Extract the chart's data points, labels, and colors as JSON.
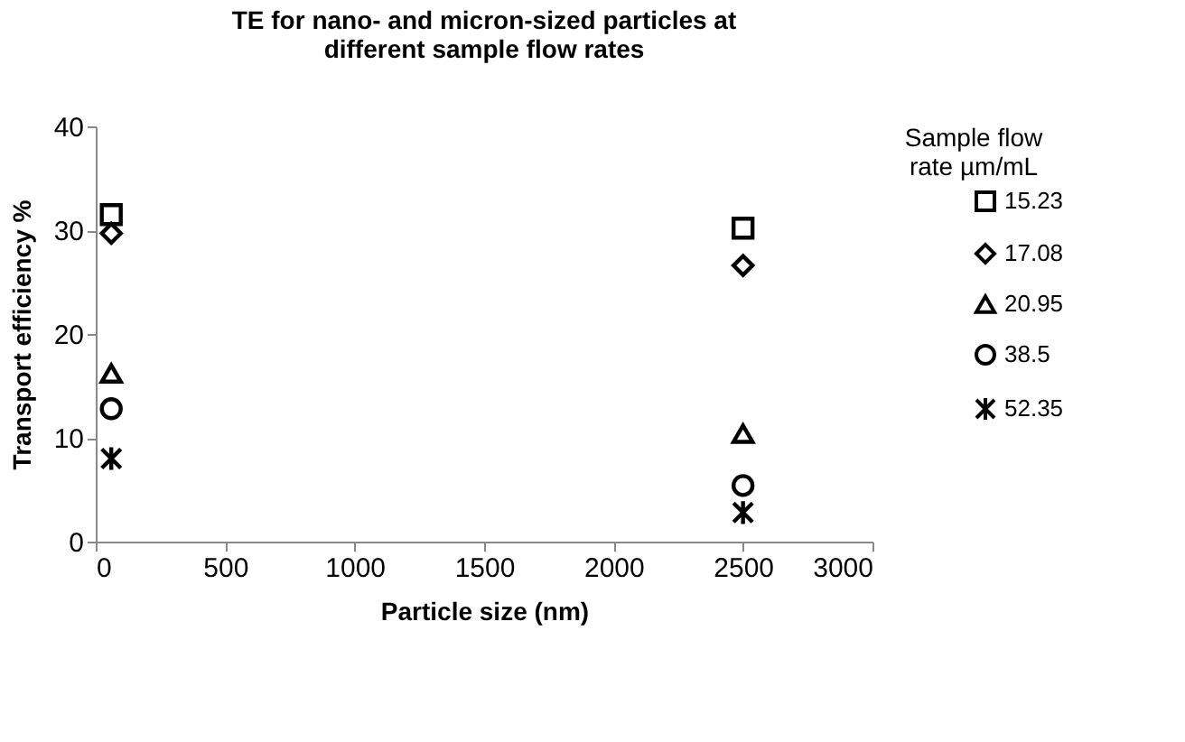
{
  "chart_data": {
    "type": "scatter",
    "title": "TE for nano- and micron-sized particles at different sample flow rates",
    "xlabel": "Particle size (nm)",
    "ylabel": "Transport efficiency %",
    "legend_title": "Sample flow rate µm/mL",
    "x": [
      60,
      2500
    ],
    "series": [
      {
        "name": "15.23",
        "color": "#000000",
        "marker": "square",
        "values": [
          31.5,
          30.2
        ]
      },
      {
        "name": "17.08",
        "color": "#000000",
        "marker": "diamond",
        "values": [
          29.7,
          26.6
        ]
      },
      {
        "name": "20.95",
        "color": "#000000",
        "marker": "triangle",
        "values": [
          16.2,
          10.4
        ]
      },
      {
        "name": "38.5",
        "color": "#000000",
        "marker": "circle",
        "values": [
          12.8,
          5.4
        ]
      },
      {
        "name": "52.35",
        "color": "#000000",
        "marker": "cross",
        "values": [
          8.0,
          2.8
        ]
      }
    ],
    "xlim": [
      0,
      3000
    ],
    "xticks": [
      0,
      500,
      1000,
      1500,
      2000,
      2500,
      3000
    ],
    "ylim": [
      0,
      40
    ],
    "yticks": [
      0,
      10,
      20,
      30,
      40
    ],
    "grid": false,
    "legend": "right"
  }
}
